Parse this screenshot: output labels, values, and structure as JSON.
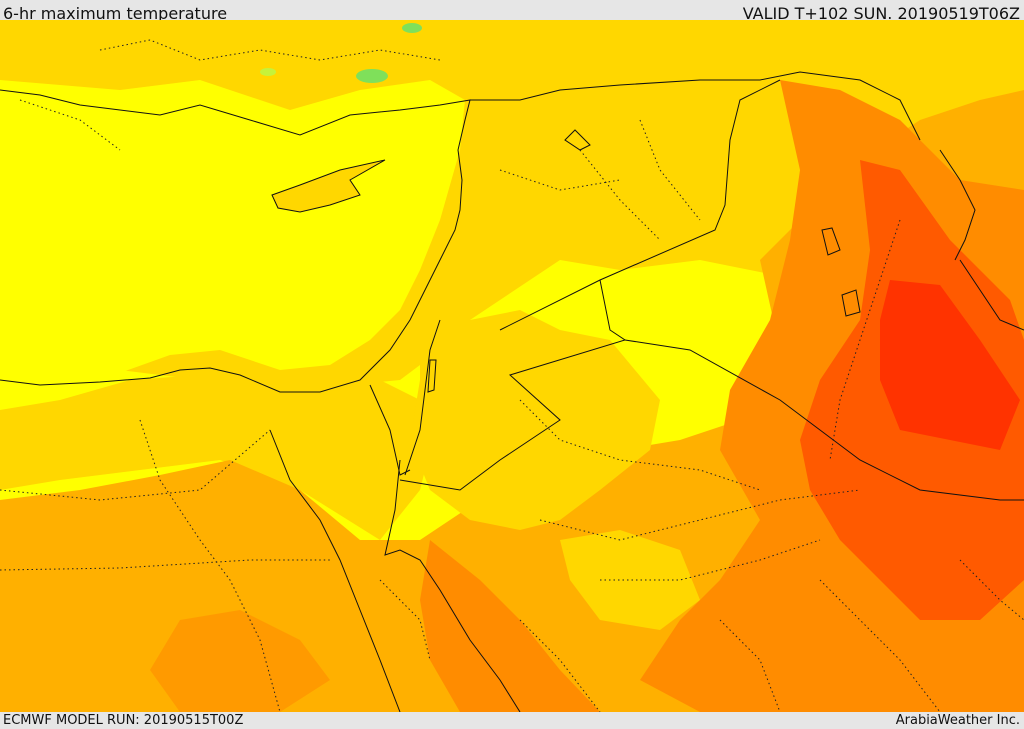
{
  "header": {
    "title": "6-hr maximum temperature",
    "valid_time": "VALID T+102 SUN. 20190519T06Z"
  },
  "footer": {
    "model_run": "ECMWF MODEL RUN: 20190515T00Z",
    "credit": "ArabiaWeather Inc."
  },
  "map": {
    "region": "Eastern Mediterranean and Middle East",
    "palette": {
      "cool": "#7fe05a",
      "mild": "#ffff00",
      "warm": "#ffd700",
      "warmer": "#ffb000",
      "hot": "#ff9a00",
      "hotter": "#ff6a00",
      "hottest": "#ff3300"
    }
  }
}
